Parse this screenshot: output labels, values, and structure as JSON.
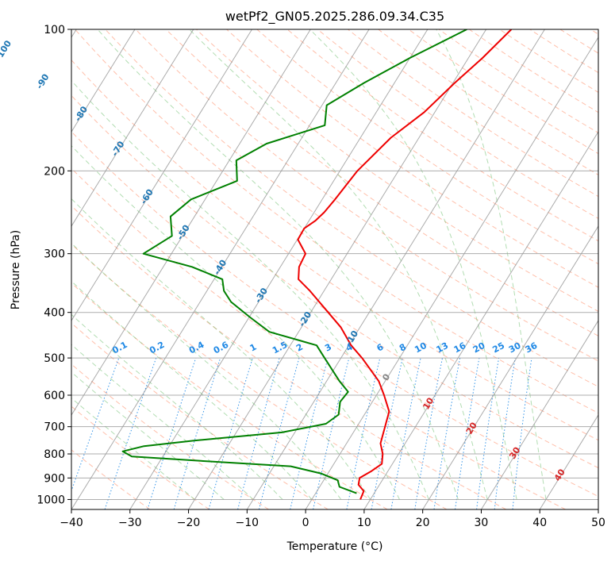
{
  "chart_data": {
    "type": "line",
    "subtype": "skew-t log-p diagram",
    "title": "wetPf2_GN05.2025.286.09.34.C35",
    "xlabel": "Temperature (°C)",
    "ylabel": "Pressure (hPa)",
    "xlim": [
      -40,
      50
    ],
    "ylim": [
      1050,
      100
    ],
    "y_scale": "log",
    "x_ticks": [
      -40,
      -30,
      -20,
      -10,
      0,
      10,
      20,
      30,
      40,
      50
    ],
    "y_ticks": [
      100,
      200,
      300,
      400,
      500,
      600,
      700,
      800,
      900,
      1000
    ],
    "x_tick_labels": [
      "−40",
      "−30",
      "−20",
      "−10",
      "0",
      "10",
      "20",
      "30",
      "40",
      "50"
    ],
    "y_tick_labels": [
      "100",
      "200",
      "300",
      "400",
      "500",
      "600",
      "700",
      "800",
      "900",
      "1000"
    ],
    "grid": true,
    "series": [
      {
        "role": "temperature",
        "color": "#ee0000",
        "points": [
          {
            "p": 1000,
            "x": 8.3
          },
          {
            "p": 960,
            "x": 8.0
          },
          {
            "p": 930,
            "x": 6.4
          },
          {
            "p": 900,
            "x": 5.9
          },
          {
            "p": 870,
            "x": 7.2
          },
          {
            "p": 840,
            "x": 8.2
          },
          {
            "p": 800,
            "x": 7.3
          },
          {
            "p": 760,
            "x": 5.8
          },
          {
            "p": 700,
            "x": 4.8
          },
          {
            "p": 650,
            "x": 3.9
          },
          {
            "p": 600,
            "x": 1.3
          },
          {
            "p": 560,
            "x": -1.1
          },
          {
            "p": 500,
            "x": -6.4
          },
          {
            "p": 470,
            "x": -9.6
          },
          {
            "p": 430,
            "x": -13.3
          },
          {
            "p": 400,
            "x": -17.0
          },
          {
            "p": 360,
            "x": -22.4
          },
          {
            "p": 340,
            "x": -25.6
          },
          {
            "p": 320,
            "x": -26.8
          },
          {
            "p": 300,
            "x": -27.1
          },
          {
            "p": 280,
            "x": -29.9
          },
          {
            "p": 265,
            "x": -30.0
          },
          {
            "p": 255,
            "x": -28.9
          },
          {
            "p": 245,
            "x": -28.3
          },
          {
            "p": 230,
            "x": -27.8
          },
          {
            "p": 200,
            "x": -27.0
          },
          {
            "p": 170,
            "x": -24.8
          },
          {
            "p": 150,
            "x": -21.8
          },
          {
            "p": 130,
            "x": -19.7
          },
          {
            "p": 115,
            "x": -17.6
          },
          {
            "p": 100,
            "x": -15.7
          }
        ]
      },
      {
        "role": "dewpoint",
        "color": "#008000",
        "points": [
          {
            "p": 970,
            "x": 7.0
          },
          {
            "p": 940,
            "x": 3.4
          },
          {
            "p": 910,
            "x": 2.4
          },
          {
            "p": 880,
            "x": -1.2
          },
          {
            "p": 850,
            "x": -7.1
          },
          {
            "p": 830,
            "x": -21.4
          },
          {
            "p": 810,
            "x": -35.3
          },
          {
            "p": 790,
            "x": -37.4
          },
          {
            "p": 770,
            "x": -34.3
          },
          {
            "p": 750,
            "x": -26.5
          },
          {
            "p": 720,
            "x": -12.2
          },
          {
            "p": 690,
            "x": -5.6
          },
          {
            "p": 660,
            "x": -4.4
          },
          {
            "p": 620,
            "x": -5.5
          },
          {
            "p": 590,
            "x": -5.2
          },
          {
            "p": 560,
            "x": -7.8
          },
          {
            "p": 500,
            "x": -12.8
          },
          {
            "p": 470,
            "x": -15.5
          },
          {
            "p": 440,
            "x": -25.0
          },
          {
            "p": 410,
            "x": -29.8
          },
          {
            "p": 380,
            "x": -34.7
          },
          {
            "p": 360,
            "x": -37.1
          },
          {
            "p": 340,
            "x": -38.6
          },
          {
            "p": 320,
            "x": -45.1
          },
          {
            "p": 300,
            "x": -54.8
          },
          {
            "p": 275,
            "x": -51.8
          },
          {
            "p": 250,
            "x": -54.1
          },
          {
            "p": 230,
            "x": -52.4
          },
          {
            "p": 210,
            "x": -46.5
          },
          {
            "p": 190,
            "x": -48.8
          },
          {
            "p": 175,
            "x": -45.4
          },
          {
            "p": 160,
            "x": -37.4
          },
          {
            "p": 145,
            "x": -39.2
          },
          {
            "p": 130,
            "x": -35.2
          },
          {
            "p": 115,
            "x": -30.0
          },
          {
            "p": 100,
            "x": -23.3
          }
        ]
      }
    ],
    "reference_lines": {
      "isotherms": {
        "color": "#888888"
      },
      "dry_adiabats": {
        "color": "#ff8a65",
        "style": "dashed"
      },
      "moist_adiabats": {
        "color": "#66bb66",
        "style": "dashed"
      },
      "mixing_ratio": {
        "color": "#1e88e5",
        "style": "dotted"
      }
    },
    "annotations": [
      {
        "group": "isotherm",
        "color": "#1f77b4",
        "labels": [
          "-100",
          "-90",
          "-80",
          "-70",
          "-60",
          "-50",
          "-40",
          "-30",
          "-20",
          "-10"
        ]
      },
      {
        "group": "mixing_ratio",
        "color": "#1e88e5",
        "labels": [
          "0.1",
          "0.2",
          "0.4",
          "0.6",
          "1",
          "1.5",
          "2",
          "3",
          "4",
          "6",
          "8",
          "10",
          "13",
          "16",
          "20",
          "25",
          "30",
          "36"
        ]
      },
      {
        "group": "isotherm_zero",
        "color": "#888888",
        "labels": [
          "0"
        ]
      },
      {
        "group": "isotherm_warm",
        "color": "#d62728",
        "labels": [
          "10",
          "20",
          "30",
          "40"
        ]
      }
    ]
  }
}
